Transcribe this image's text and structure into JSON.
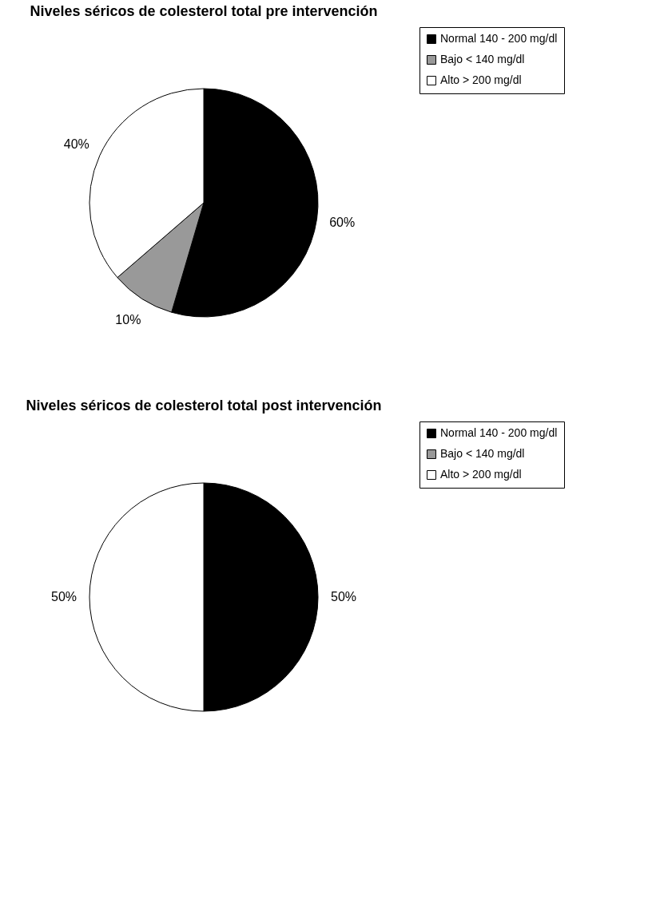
{
  "chart_data": [
    {
      "type": "pie",
      "title": "Niveles séricos de colesterol total pre intervención",
      "categories": [
        "Normal 140 - 200 mg/dl",
        "Bajo < 140 mg/dl",
        "Alto > 200 mg/dl"
      ],
      "values": [
        60,
        10,
        40
      ],
      "colors": [
        "#000000",
        "#999999",
        "#ffffff"
      ],
      "value_labels": [
        "60%",
        "10%",
        "40%"
      ],
      "legend": "right"
    },
    {
      "type": "pie",
      "title": "Niveles séricos de colesterol total post intervención",
      "categories": [
        "Normal 140 - 200 mg/dl",
        "Bajo < 140 mg/dl",
        "Alto > 200 mg/dl"
      ],
      "values": [
        50,
        0,
        50
      ],
      "colors": [
        "#000000",
        "#999999",
        "#ffffff"
      ],
      "value_labels": [
        "50%",
        null,
        "50%"
      ],
      "legend": "right"
    }
  ]
}
